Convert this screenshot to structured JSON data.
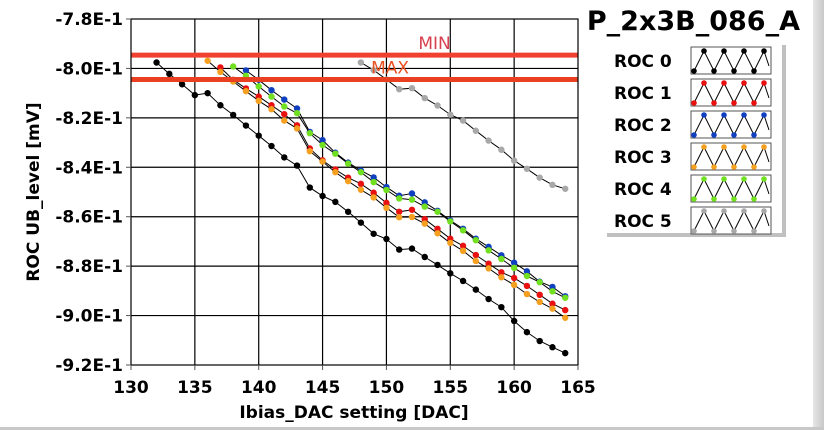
{
  "chart_data": {
    "type": "line",
    "title": "P_2x3B_086_A",
    "xlabel": "Ibias_DAC setting [DAC]",
    "ylabel": "ROC UB_level [mV]",
    "xlim": [
      130,
      165
    ],
    "ylim": [
      -0.92,
      -0.78
    ],
    "xticks": [
      130,
      135,
      140,
      145,
      150,
      155,
      160,
      165
    ],
    "xtick_labels": [
      "130",
      "135",
      "140",
      "145",
      "150",
      "155",
      "160",
      "165"
    ],
    "yticks": [
      -0.78,
      -0.8,
      -0.82,
      -0.84,
      -0.86,
      -0.88,
      -0.9,
      -0.92
    ],
    "ytick_labels": [
      "-7.8E-1",
      "-8.0E-1",
      "-8.2E-1",
      "-8.4E-1",
      "-8.6E-1",
      "-8.8E-1",
      "-9.0E-1",
      "-9.2E-1"
    ],
    "grid": true,
    "legend_position": "top-right",
    "limits": [
      {
        "name": "MIN",
        "value": -0.7946,
        "line_color": "#f04030",
        "label_color": "#d84050",
        "label_x": 152.5
      },
      {
        "name": "MAX",
        "value": -0.8045,
        "line_color": "#e84020",
        "label_color": "#e85020",
        "label_x": 148.8
      }
    ],
    "series": [
      {
        "name": "ROC 0",
        "color": "#000000",
        "x": [
          132,
          133,
          134,
          135,
          136,
          137,
          138,
          139,
          140,
          141,
          142,
          143,
          144,
          145,
          146,
          147,
          148,
          149,
          150,
          151,
          152,
          153,
          154,
          155,
          156,
          157,
          158,
          159,
          160,
          161,
          162,
          163,
          164
        ],
        "y": [
          -0.7976,
          -0.8022,
          -0.8064,
          -0.8108,
          -0.81,
          -0.8149,
          -0.8188,
          -0.8231,
          -0.8272,
          -0.8314,
          -0.836,
          -0.8393,
          -0.8482,
          -0.8516,
          -0.854,
          -0.858,
          -0.8624,
          -0.8669,
          -0.869,
          -0.8733,
          -0.8729,
          -0.8763,
          -0.8795,
          -0.8829,
          -0.886,
          -0.8895,
          -0.8933,
          -0.8966,
          -0.9022,
          -0.9067,
          -0.9103,
          -0.9128,
          -0.9152
        ]
      },
      {
        "name": "ROC 1",
        "color": "#e81010",
        "x": [
          137,
          138,
          139,
          140,
          141,
          142,
          143,
          144,
          145,
          146,
          147,
          148,
          149,
          150,
          151,
          152,
          153,
          154,
          155,
          156,
          157,
          158,
          159,
          160,
          161,
          162,
          163,
          164
        ],
        "y": [
          -0.7996,
          -0.8046,
          -0.8081,
          -0.8114,
          -0.8149,
          -0.8185,
          -0.823,
          -0.8324,
          -0.8372,
          -0.8409,
          -0.8442,
          -0.8467,
          -0.8503,
          -0.8544,
          -0.858,
          -0.8572,
          -0.861,
          -0.8649,
          -0.8689,
          -0.8718,
          -0.8755,
          -0.879,
          -0.8825,
          -0.8848,
          -0.888,
          -0.8916,
          -0.8952,
          -0.8978
        ]
      },
      {
        "name": "ROC 2",
        "color": "#1040c0",
        "x": [
          139,
          140,
          141,
          142,
          143,
          144,
          145,
          146,
          147,
          148,
          149,
          150,
          151,
          152,
          153,
          154,
          155,
          156,
          157,
          158,
          159,
          160,
          161,
          162,
          163,
          164
        ],
        "y": [
          -0.8008,
          -0.8046,
          -0.8088,
          -0.8126,
          -0.8162,
          -0.8257,
          -0.829,
          -0.8341,
          -0.8381,
          -0.8413,
          -0.8441,
          -0.848,
          -0.8515,
          -0.8506,
          -0.8542,
          -0.8576,
          -0.8615,
          -0.8649,
          -0.8689,
          -0.8722,
          -0.8756,
          -0.8786,
          -0.8821,
          -0.8863,
          -0.8884,
          -0.8922
        ]
      },
      {
        "name": "ROC 3",
        "color": "#f5a020",
        "x": [
          136,
          137,
          138,
          139,
          140,
          141,
          142,
          143,
          144,
          145,
          146,
          147,
          148,
          149,
          150,
          151,
          152,
          153,
          154,
          155,
          156,
          157,
          158,
          159,
          160,
          161,
          162,
          163,
          164
        ],
        "y": [
          -0.7969,
          -0.8014,
          -0.8053,
          -0.8092,
          -0.8131,
          -0.8165,
          -0.8211,
          -0.8243,
          -0.8335,
          -0.8377,
          -0.842,
          -0.8456,
          -0.8491,
          -0.8522,
          -0.8564,
          -0.8602,
          -0.8601,
          -0.8628,
          -0.8667,
          -0.8706,
          -0.8738,
          -0.8779,
          -0.8809,
          -0.8845,
          -0.8876,
          -0.8913,
          -0.8945,
          -0.8972,
          -0.9009
        ]
      },
      {
        "name": "ROC 4",
        "color": "#70e020",
        "x": [
          138,
          139,
          140,
          141,
          142,
          143,
          144,
          145,
          146,
          147,
          148,
          149,
          150,
          151,
          152,
          153,
          154,
          155,
          156,
          157,
          158,
          159,
          160,
          161,
          162,
          163,
          164
        ],
        "y": [
          -0.7992,
          -0.803,
          -0.8073,
          -0.8114,
          -0.8154,
          -0.8181,
          -0.8262,
          -0.831,
          -0.8345,
          -0.8385,
          -0.842,
          -0.846,
          -0.8492,
          -0.8526,
          -0.8531,
          -0.8559,
          -0.858,
          -0.8619,
          -0.8655,
          -0.8695,
          -0.8736,
          -0.8771,
          -0.8807,
          -0.884,
          -0.8865,
          -0.8902,
          -0.8928
        ]
      },
      {
        "name": "ROC 5",
        "color": "#a8a8a8",
        "x": [
          148,
          149,
          150,
          151,
          152,
          153,
          154,
          155,
          156,
          157,
          158,
          159,
          160,
          161,
          162,
          163,
          164
        ],
        "y": [
          -0.7976,
          -0.8007,
          -0.8045,
          -0.8084,
          -0.808,
          -0.812,
          -0.815,
          -0.8187,
          -0.8211,
          -0.8252,
          -0.8292,
          -0.8329,
          -0.8373,
          -0.8406,
          -0.8442,
          -0.8471,
          -0.8487
        ]
      }
    ]
  }
}
